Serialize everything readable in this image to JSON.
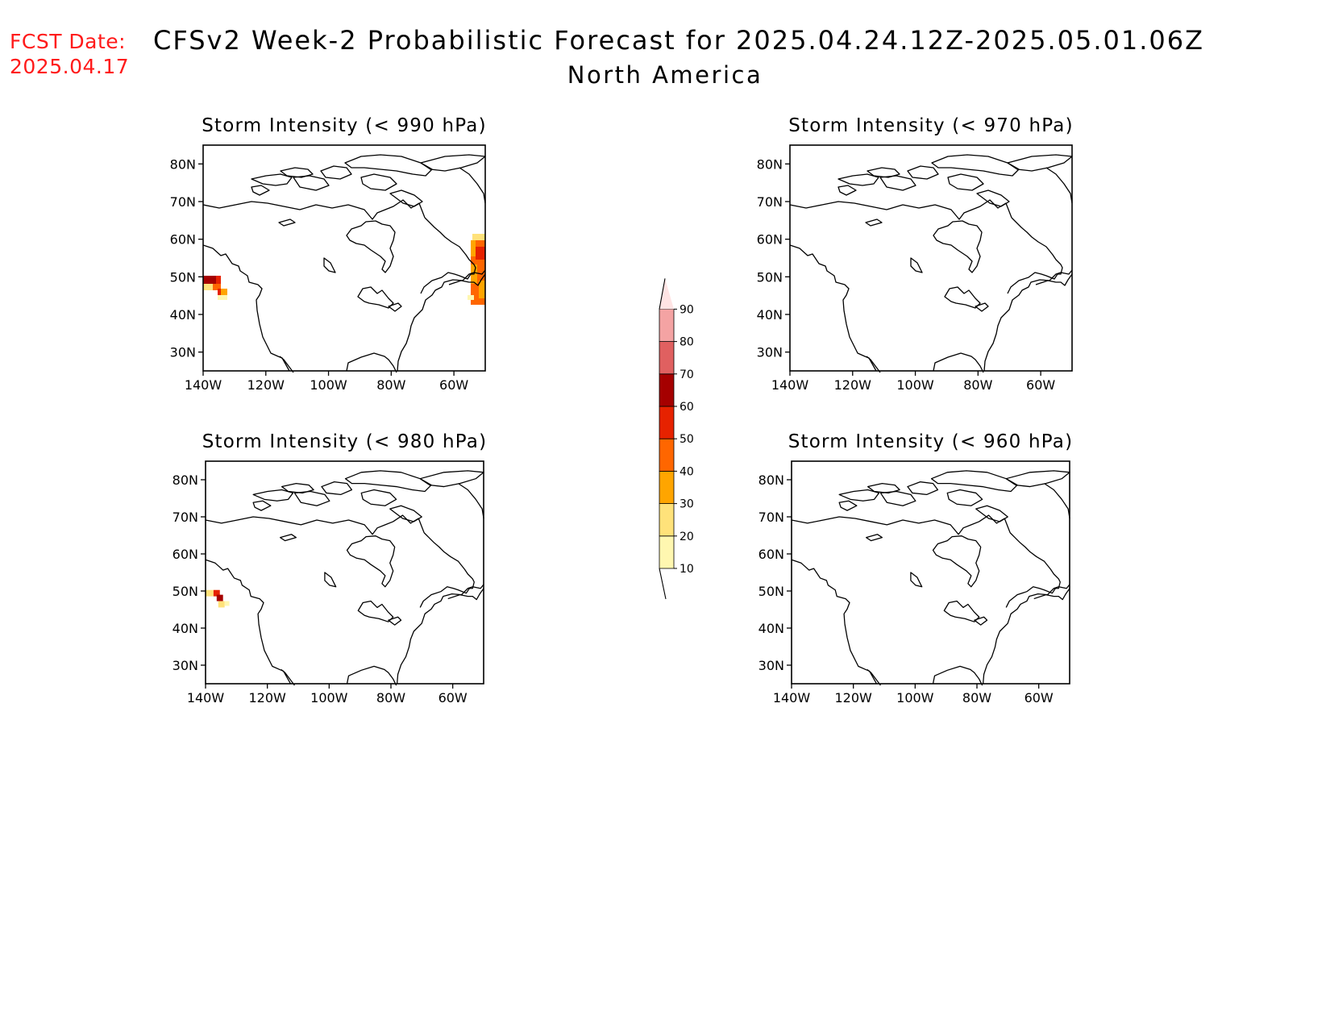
{
  "header": {
    "fcst_label": "FCST Date:\n2025.04.17",
    "title": "CFSv2 Week-2 Probabilistic Forecast for 2025.04.24.12Z-2025.05.01.06Z",
    "subtitle": "North America"
  },
  "colors": {
    "fcst_label": "#ff1a1a",
    "levels": [
      "#fff7b0",
      "#ffe27a",
      "#ffa500",
      "#ff6600",
      "#e62200",
      "#a50000",
      "#e06060",
      "#f4a3a3",
      "#ffe4e4"
    ]
  },
  "map_axes": {
    "lon_ticks": [
      "140W",
      "120W",
      "100W",
      "80W",
      "60W"
    ],
    "lat_ticks": [
      "80N",
      "70N",
      "60N",
      "50N",
      "40N",
      "30N"
    ],
    "lon_range": [
      -140,
      -50
    ],
    "lat_range": [
      25,
      85
    ]
  },
  "colorbar": {
    "labels": [
      "10",
      "20",
      "30",
      "40",
      "50",
      "60",
      "70",
      "80",
      "90"
    ]
  },
  "panels": [
    {
      "title": "Storm Intensity (< 990 hPa)",
      "probability_areas": [
        {
          "region": "Pacific off British Columbia",
          "lon": -136,
          "lat": 48,
          "max_level": "60-70"
        },
        {
          "region": "Atlantic off Newfoundland",
          "lon": -51,
          "lat": 51,
          "max_level": "40-50"
        }
      ]
    },
    {
      "title": "Storm Intensity (< 970 hPa)",
      "probability_areas": []
    },
    {
      "title": "Storm Intensity (< 980 hPa)",
      "probability_areas": [
        {
          "region": "Pacific off British Columbia",
          "lon": -137,
          "lat": 49,
          "max_level": "50-60"
        }
      ]
    },
    {
      "title": "Storm Intensity (< 960 hPa)",
      "probability_areas": []
    }
  ]
}
